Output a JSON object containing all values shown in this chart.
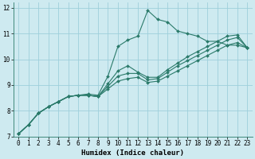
{
  "xlabel": "Humidex (Indice chaleur)",
  "background_color": "#ceeaf0",
  "grid_color": "#9ecfdb",
  "line_color": "#2a7a6a",
  "xlim": [
    -0.5,
    23.5
  ],
  "ylim": [
    7,
    12.2
  ],
  "yticks": [
    7,
    8,
    9,
    10,
    11,
    12
  ],
  "xticks": [
    0,
    1,
    2,
    3,
    4,
    5,
    6,
    7,
    8,
    9,
    10,
    11,
    12,
    13,
    14,
    15,
    16,
    17,
    18,
    19,
    20,
    21,
    22,
    23
  ],
  "series": [
    [
      7.1,
      7.45,
      7.9,
      8.15,
      8.35,
      8.55,
      8.6,
      8.65,
      8.6,
      9.35,
      10.5,
      10.75,
      10.9,
      11.9,
      11.55,
      11.45,
      11.1,
      11.0,
      10.9,
      10.7,
      10.7,
      10.55,
      10.55,
      10.45
    ],
    [
      7.1,
      7.45,
      7.9,
      8.15,
      8.35,
      8.55,
      8.6,
      8.6,
      8.55,
      9.05,
      9.55,
      9.75,
      9.5,
      9.3,
      9.3,
      9.6,
      9.85,
      10.1,
      10.3,
      10.5,
      10.7,
      10.9,
      10.95,
      10.45
    ],
    [
      7.1,
      7.45,
      7.9,
      8.15,
      8.35,
      8.55,
      8.6,
      8.6,
      8.55,
      8.95,
      9.35,
      9.45,
      9.45,
      9.2,
      9.25,
      9.5,
      9.75,
      9.95,
      10.15,
      10.35,
      10.55,
      10.75,
      10.85,
      10.45
    ],
    [
      7.1,
      7.45,
      7.9,
      8.15,
      8.35,
      8.55,
      8.6,
      8.6,
      8.55,
      8.85,
      9.15,
      9.25,
      9.3,
      9.1,
      9.15,
      9.35,
      9.55,
      9.75,
      9.95,
      10.15,
      10.35,
      10.55,
      10.65,
      10.45
    ]
  ],
  "xlabel_fontsize": 6.5,
  "tick_fontsize": 5.5,
  "marker_size": 2.0,
  "linewidth": 0.8
}
